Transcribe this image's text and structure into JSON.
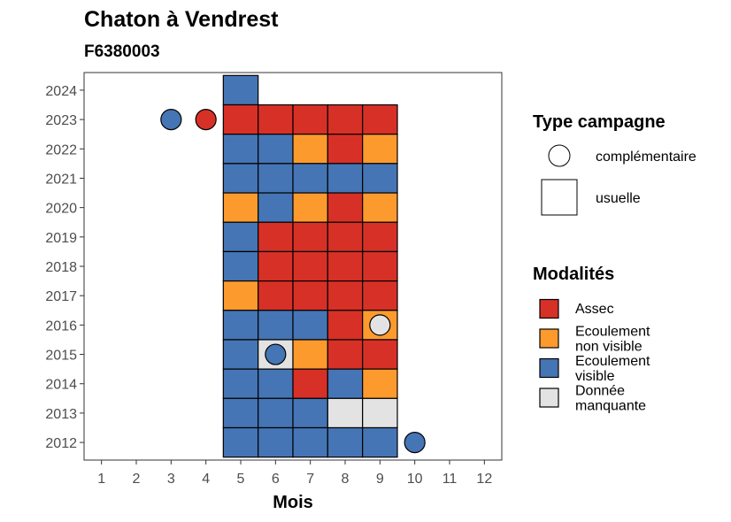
{
  "chart_data": {
    "type": "heatmap",
    "title": "Chaton à Vendrest",
    "subtitle": "F6380003",
    "xlabel": "Mois",
    "ylabel": "",
    "x_ticks": [
      1,
      2,
      3,
      4,
      5,
      6,
      7,
      8,
      9,
      10,
      11,
      12
    ],
    "y_ticks": [
      2012,
      2013,
      2014,
      2015,
      2016,
      2017,
      2018,
      2019,
      2020,
      2021,
      2022,
      2023,
      2024
    ],
    "xlim": [
      0.5,
      12.5
    ],
    "ylim": [
      2011.4,
      2024.6
    ],
    "grid": false,
    "legend_placement": "right",
    "modalites": {
      "title": "Modalités",
      "items": [
        {
          "key": "assec",
          "label_lines": [
            "Assec"
          ],
          "color": "#d73027"
        },
        {
          "key": "ecoul_nv",
          "label_lines": [
            "Ecoulement",
            "non visible"
          ],
          "color": "#fd9a2e"
        },
        {
          "key": "ecoul_v",
          "label_lines": [
            "Ecoulement",
            "visible"
          ],
          "color": "#4575b4"
        },
        {
          "key": "manquante",
          "label_lines": [
            "Donnée",
            "manquante"
          ],
          "color": "#e3e3e3"
        }
      ]
    },
    "type_campagne": {
      "title": "Type campagne",
      "items": [
        {
          "key": "complementaire",
          "label": "complémentaire",
          "shape": "circle"
        },
        {
          "key": "usuelle",
          "label": "usuelle",
          "shape": "square"
        }
      ]
    },
    "usuelle": [
      {
        "year": 2024,
        "month": 5,
        "modalite": "ecoul_v"
      },
      {
        "year": 2023,
        "month": 5,
        "modalite": "assec"
      },
      {
        "year": 2023,
        "month": 6,
        "modalite": "assec"
      },
      {
        "year": 2023,
        "month": 7,
        "modalite": "assec"
      },
      {
        "year": 2023,
        "month": 8,
        "modalite": "assec"
      },
      {
        "year": 2023,
        "month": 9,
        "modalite": "assec"
      },
      {
        "year": 2022,
        "month": 5,
        "modalite": "ecoul_v"
      },
      {
        "year": 2022,
        "month": 6,
        "modalite": "ecoul_v"
      },
      {
        "year": 2022,
        "month": 7,
        "modalite": "ecoul_nv"
      },
      {
        "year": 2022,
        "month": 8,
        "modalite": "assec"
      },
      {
        "year": 2022,
        "month": 9,
        "modalite": "ecoul_nv"
      },
      {
        "year": 2021,
        "month": 5,
        "modalite": "ecoul_v"
      },
      {
        "year": 2021,
        "month": 6,
        "modalite": "ecoul_v"
      },
      {
        "year": 2021,
        "month": 7,
        "modalite": "ecoul_v"
      },
      {
        "year": 2021,
        "month": 8,
        "modalite": "ecoul_v"
      },
      {
        "year": 2021,
        "month": 9,
        "modalite": "ecoul_v"
      },
      {
        "year": 2020,
        "month": 5,
        "modalite": "ecoul_nv"
      },
      {
        "year": 2020,
        "month": 6,
        "modalite": "ecoul_v"
      },
      {
        "year": 2020,
        "month": 7,
        "modalite": "ecoul_nv"
      },
      {
        "year": 2020,
        "month": 8,
        "modalite": "assec"
      },
      {
        "year": 2020,
        "month": 9,
        "modalite": "ecoul_nv"
      },
      {
        "year": 2019,
        "month": 5,
        "modalite": "ecoul_v"
      },
      {
        "year": 2019,
        "month": 6,
        "modalite": "assec"
      },
      {
        "year": 2019,
        "month": 7,
        "modalite": "assec"
      },
      {
        "year": 2019,
        "month": 8,
        "modalite": "assec"
      },
      {
        "year": 2019,
        "month": 9,
        "modalite": "assec"
      },
      {
        "year": 2018,
        "month": 5,
        "modalite": "ecoul_v"
      },
      {
        "year": 2018,
        "month": 6,
        "modalite": "assec"
      },
      {
        "year": 2018,
        "month": 7,
        "modalite": "assec"
      },
      {
        "year": 2018,
        "month": 8,
        "modalite": "assec"
      },
      {
        "year": 2018,
        "month": 9,
        "modalite": "assec"
      },
      {
        "year": 2017,
        "month": 5,
        "modalite": "ecoul_nv"
      },
      {
        "year": 2017,
        "month": 6,
        "modalite": "assec"
      },
      {
        "year": 2017,
        "month": 7,
        "modalite": "assec"
      },
      {
        "year": 2017,
        "month": 8,
        "modalite": "assec"
      },
      {
        "year": 2017,
        "month": 9,
        "modalite": "assec"
      },
      {
        "year": 2016,
        "month": 5,
        "modalite": "ecoul_v"
      },
      {
        "year": 2016,
        "month": 6,
        "modalite": "ecoul_v"
      },
      {
        "year": 2016,
        "month": 7,
        "modalite": "ecoul_v"
      },
      {
        "year": 2016,
        "month": 8,
        "modalite": "assec"
      },
      {
        "year": 2016,
        "month": 9,
        "modalite": "ecoul_nv"
      },
      {
        "year": 2015,
        "month": 5,
        "modalite": "ecoul_v"
      },
      {
        "year": 2015,
        "month": 6,
        "modalite": "manquante"
      },
      {
        "year": 2015,
        "month": 7,
        "modalite": "ecoul_nv"
      },
      {
        "year": 2015,
        "month": 8,
        "modalite": "assec"
      },
      {
        "year": 2015,
        "month": 9,
        "modalite": "assec"
      },
      {
        "year": 2014,
        "month": 5,
        "modalite": "ecoul_v"
      },
      {
        "year": 2014,
        "month": 6,
        "modalite": "ecoul_v"
      },
      {
        "year": 2014,
        "month": 7,
        "modalite": "assec"
      },
      {
        "year": 2014,
        "month": 8,
        "modalite": "ecoul_v"
      },
      {
        "year": 2014,
        "month": 9,
        "modalite": "ecoul_nv"
      },
      {
        "year": 2013,
        "month": 5,
        "modalite": "ecoul_v"
      },
      {
        "year": 2013,
        "month": 6,
        "modalite": "ecoul_v"
      },
      {
        "year": 2013,
        "month": 7,
        "modalite": "ecoul_v"
      },
      {
        "year": 2013,
        "month": 8,
        "modalite": "manquante"
      },
      {
        "year": 2013,
        "month": 9,
        "modalite": "manquante"
      },
      {
        "year": 2012,
        "month": 5,
        "modalite": "ecoul_v"
      },
      {
        "year": 2012,
        "month": 6,
        "modalite": "ecoul_v"
      },
      {
        "year": 2012,
        "month": 7,
        "modalite": "ecoul_v"
      },
      {
        "year": 2012,
        "month": 8,
        "modalite": "ecoul_v"
      },
      {
        "year": 2012,
        "month": 9,
        "modalite": "ecoul_v"
      }
    ],
    "complementaire": [
      {
        "year": 2023,
        "month": 3,
        "modalite": "ecoul_v"
      },
      {
        "year": 2023,
        "month": 4,
        "modalite": "assec"
      },
      {
        "year": 2016,
        "month": 9,
        "modalite": "manquante"
      },
      {
        "year": 2015,
        "month": 6,
        "modalite": "ecoul_v"
      },
      {
        "year": 2012,
        "month": 10,
        "modalite": "ecoul_v"
      }
    ]
  }
}
